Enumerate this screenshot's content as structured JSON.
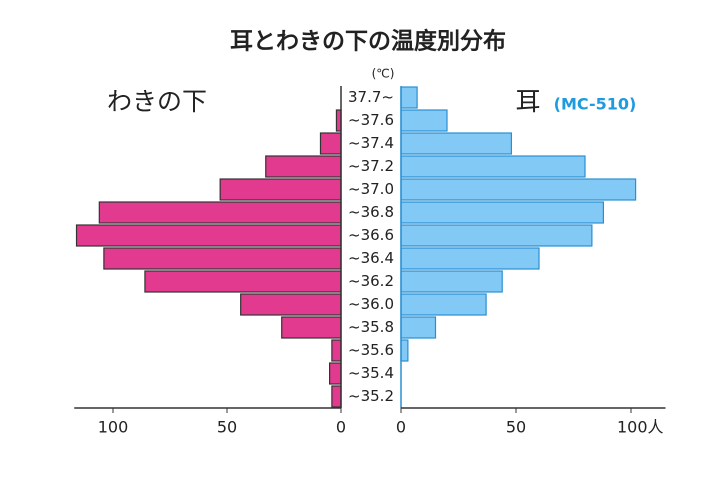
{
  "chart_data": {
    "type": "bar",
    "orientation": "horizontal",
    "title": "耳とわきの下の温度別分布",
    "unit_label": "(℃)",
    "categories": [
      "37.7~",
      "~37.6",
      "~37.4",
      "~37.2",
      "~37.0",
      "~36.8",
      "~36.6",
      "~36.4",
      "~36.2",
      "~36.0",
      "~35.8",
      "~35.6",
      "~35.4",
      "~35.2"
    ],
    "series": [
      {
        "name": "わきの下",
        "color": "#e23a8f",
        "side": "left",
        "xlim": [
          0,
          117
        ],
        "xticks": [
          0,
          50,
          100
        ],
        "values": [
          0,
          2,
          9,
          33,
          53,
          106,
          116,
          104,
          86,
          44,
          26,
          4,
          5,
          4
        ]
      },
      {
        "name": "耳",
        "model": "(MC-510)",
        "color": "#82c9f5",
        "side": "right",
        "xlim": [
          0,
          115
        ],
        "xticks": [
          0,
          50,
          {
            "value": 100,
            "label": "100人"
          }
        ],
        "values": [
          7,
          20,
          48,
          80,
          102,
          88,
          83,
          60,
          44,
          37,
          15,
          3,
          0,
          0
        ]
      }
    ]
  }
}
